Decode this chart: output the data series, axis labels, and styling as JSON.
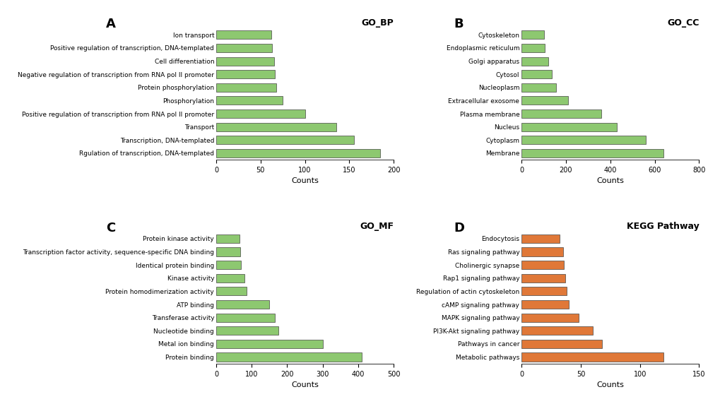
{
  "go_bp": {
    "title": "GO_BP",
    "panel": "A",
    "labels": [
      "Ion transport",
      "Positive regulation of transcription, DNA-templated",
      "Cell differentiation",
      "Negative regulation of transcription from RNA pol II promoter",
      "Protein phosphorylation",
      "Phosphorylation",
      "Positive regulation of transcription from RNA pol II promoter",
      "Transport",
      "Transcription, DNA-templated",
      "Rgulation of transcription, DNA-templated"
    ],
    "values": [
      62,
      63,
      65,
      66,
      68,
      75,
      100,
      135,
      155,
      185
    ],
    "color": "#8dc870",
    "xlabel": "Counts",
    "xlim": [
      0,
      200
    ],
    "xticks": [
      0,
      50,
      100,
      150,
      200
    ]
  },
  "go_cc": {
    "title": "GO_CC",
    "panel": "B",
    "labels": [
      "Cytoskeleton",
      "Endoplasmic reticulum",
      "Golgi apparatus",
      "Cytosol",
      "Nucleoplasm",
      "Extracellular exosome",
      "Plasma membrane",
      "Nucleus",
      "Cytoplasm",
      "Membrane"
    ],
    "values": [
      100,
      105,
      120,
      135,
      155,
      210,
      360,
      430,
      560,
      640
    ],
    "color": "#8dc870",
    "xlabel": "Counts",
    "xlim": [
      0,
      800
    ],
    "xticks": [
      0,
      200,
      400,
      600,
      800
    ]
  },
  "go_mf": {
    "title": "GO_MF",
    "panel": "C",
    "labels": [
      "Protein kinase activity",
      "Transcription factor activity, sequence-specific DNA binding",
      "Identical protein binding",
      "Kinase activity",
      "Protein homodimerization activity",
      "ATP binding",
      "Transferase activity",
      "Nucleotide binding",
      "Metal ion binding",
      "Protein binding"
    ],
    "values": [
      65,
      68,
      70,
      80,
      85,
      150,
      165,
      175,
      300,
      410
    ],
    "color": "#8dc870",
    "xlabel": "Counts",
    "xlim": [
      0,
      500
    ],
    "xticks": [
      0,
      100,
      200,
      300,
      400,
      500
    ]
  },
  "kegg": {
    "title": "KEGG Pathway",
    "panel": "D",
    "labels": [
      "Endocytosis",
      "Ras signaling pathway",
      "Cholinergic synapse",
      "Rap1 signaling pathway",
      "Regulation of actin cytoskeleton",
      "cAMP signaling pathway",
      "MAPK signaling pathway",
      "PI3K-Akt signaling pathway",
      "Pathways in cancer",
      "Metabolic pathways"
    ],
    "values": [
      32,
      35,
      36,
      37,
      38,
      40,
      48,
      60,
      68,
      120
    ],
    "color": "#e07838",
    "xlabel": "Counts",
    "xlim": [
      0,
      150
    ],
    "xticks": [
      0,
      50,
      100,
      150
    ]
  },
  "bg_color": "#ffffff",
  "bar_edge_color": "#444444",
  "bar_linewidth": 0.5,
  "panel_letter_fontsize": 13,
  "title_fontsize": 9,
  "label_fontsize": 6.5,
  "tick_fontsize": 7,
  "xlabel_fontsize": 8
}
